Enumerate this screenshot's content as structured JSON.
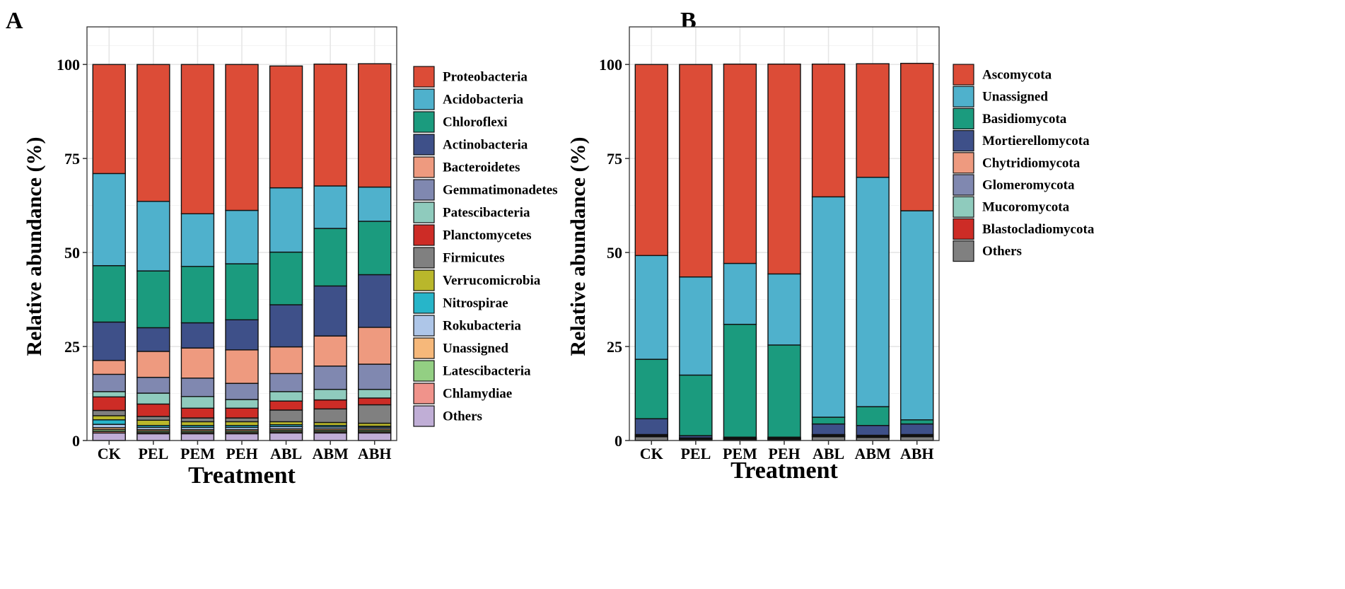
{
  "figure": {
    "panel_labels": [
      "A",
      "B"
    ]
  },
  "chart_data": [
    {
      "panel": "A",
      "type": "bar",
      "stacked": true,
      "xlabel": "Treatment",
      "ylabel": "Relative abundance (%)",
      "ylim": [
        0,
        110
      ],
      "yticks": [
        0,
        25,
        50,
        75,
        100
      ],
      "grid": true,
      "legend_position": "right",
      "categories": [
        "CK",
        "PEL",
        "PEM",
        "PEH",
        "ABL",
        "ABM",
        "ABH"
      ],
      "series": [
        {
          "name": "Others",
          "color": "#c0aed6",
          "values": [
            2.0,
            1.8,
            1.8,
            1.8,
            2.0,
            2.0,
            2.0
          ]
        },
        {
          "name": "Chlamydiae",
          "color": "#f0938b",
          "values": [
            0.4,
            0.3,
            0.3,
            0.3,
            0.3,
            0.3,
            0.3
          ]
        },
        {
          "name": "Latescibacteria",
          "color": "#93cf83",
          "values": [
            0.5,
            0.4,
            0.4,
            0.4,
            0.4,
            0.4,
            0.4
          ]
        },
        {
          "name": "Unassigned",
          "color": "#f6b87a",
          "values": [
            0.5,
            0.4,
            0.4,
            0.4,
            0.4,
            0.4,
            0.4
          ]
        },
        {
          "name": "Rokubacteria",
          "color": "#aec6e8",
          "values": [
            0.9,
            0.6,
            0.6,
            0.6,
            0.6,
            0.5,
            0.4
          ]
        },
        {
          "name": "Nitrospirae",
          "color": "#27b5c9",
          "values": [
            1.2,
            0.5,
            0.5,
            0.5,
            0.5,
            0.4,
            0.3
          ]
        },
        {
          "name": "Verrucomicrobia",
          "color": "#b9b72b",
          "values": [
            1.1,
            1.4,
            1.0,
            1.0,
            0.8,
            0.8,
            0.8
          ]
        },
        {
          "name": "Firmicutes",
          "color": "#808080",
          "values": [
            1.4,
            1.0,
            1.0,
            1.0,
            3.1,
            3.6,
            4.9
          ]
        },
        {
          "name": "Planctomycetes",
          "color": "#cd2c26",
          "values": [
            3.6,
            3.3,
            2.6,
            2.6,
            2.4,
            2.4,
            1.8
          ]
        },
        {
          "name": "Patescibacteria",
          "color": "#8fcbbd",
          "values": [
            1.4,
            2.9,
            3.1,
            2.3,
            2.5,
            2.8,
            2.3
          ]
        },
        {
          "name": "Gemmatimonadetes",
          "color": "#8088b0",
          "values": [
            4.6,
            4.2,
            4.9,
            4.3,
            4.8,
            6.2,
            6.7
          ]
        },
        {
          "name": "Bacteroidetes",
          "color": "#ee9a7f",
          "values": [
            3.7,
            6.9,
            8.0,
            8.9,
            7.1,
            8.0,
            9.8
          ]
        },
        {
          "name": "Actinobacteria",
          "color": "#3e5089",
          "values": [
            10.2,
            6.3,
            6.7,
            8.0,
            11.2,
            13.3,
            14.0
          ]
        },
        {
          "name": "Chloroflexi",
          "color": "#1b9b7e",
          "values": [
            15.0,
            15.1,
            15.0,
            14.9,
            14.0,
            15.3,
            14.2
          ]
        },
        {
          "name": "Acidobacteria",
          "color": "#4fb1cc",
          "values": [
            24.5,
            18.5,
            14.0,
            14.2,
            17.1,
            11.3,
            9.1
          ]
        },
        {
          "name": "Proteobacteria",
          "color": "#dc4c37",
          "values": [
            29.0,
            36.4,
            39.7,
            38.8,
            32.4,
            32.4,
            32.8
          ]
        }
      ],
      "legend": [
        "Proteobacteria",
        "Acidobacteria",
        "Chloroflexi",
        "Actinobacteria",
        "Bacteroidetes",
        "Gemmatimonadetes",
        "Patescibacteria",
        "Planctomycetes",
        "Firmicutes",
        "Verrucomicrobia",
        "Nitrospirae",
        "Rokubacteria",
        "Unassigned",
        "Latescibacteria",
        "Chlamydiae",
        "Others"
      ]
    },
    {
      "panel": "B",
      "type": "bar",
      "stacked": true,
      "xlabel": "Treatment",
      "ylabel": "Relative abundance (%)",
      "ylim": [
        0,
        110
      ],
      "yticks": [
        0,
        25,
        50,
        75,
        100
      ],
      "grid": true,
      "legend_position": "right",
      "categories": [
        "CK",
        "PEL",
        "PEM",
        "PEH",
        "ABL",
        "ABM",
        "ABH"
      ],
      "series": [
        {
          "name": "Others",
          "color": "#808080",
          "values": [
            1.0,
            0.3,
            0.3,
            0.3,
            1.0,
            0.8,
            1.0
          ]
        },
        {
          "name": "Blastocladiomycota",
          "color": "#cd2c26",
          "values": [
            0.1,
            0.1,
            0.1,
            0.1,
            0.1,
            0.1,
            0.1
          ]
        },
        {
          "name": "Mucoromycota",
          "color": "#8fcbbd",
          "values": [
            0.2,
            0.1,
            0.1,
            0.1,
            0.2,
            0.2,
            0.2
          ]
        },
        {
          "name": "Glomeromycota",
          "color": "#8088b0",
          "values": [
            0.2,
            0.1,
            0.1,
            0.1,
            0.2,
            0.2,
            0.2
          ]
        },
        {
          "name": "Chytridiomycota",
          "color": "#ee9a7f",
          "values": [
            0.1,
            0.1,
            0.1,
            0.1,
            0.1,
            0.1,
            0.1
          ]
        },
        {
          "name": "Mortierellomycota",
          "color": "#3e5089",
          "values": [
            4.2,
            0.6,
            0.2,
            0.2,
            2.8,
            2.6,
            2.8
          ]
        },
        {
          "name": "Basidiomycota",
          "color": "#1b9b7e",
          "values": [
            15.8,
            16.1,
            30.0,
            24.5,
            1.8,
            5.0,
            1.1
          ]
        },
        {
          "name": "Unassigned",
          "color": "#4fb1cc",
          "values": [
            27.6,
            26.1,
            16.2,
            18.9,
            58.6,
            61.0,
            55.6
          ]
        },
        {
          "name": "Ascomycota",
          "color": "#dc4c37",
          "values": [
            50.8,
            56.5,
            53.0,
            55.8,
            35.3,
            30.2,
            39.2
          ]
        }
      ],
      "legend": [
        "Ascomycota",
        "Unassigned",
        "Basidiomycota",
        "Mortierellomycota",
        "Chytridiomycota",
        "Glomeromycota",
        "Mucoromycota",
        "Blastocladiomycota",
        "Others"
      ]
    }
  ]
}
